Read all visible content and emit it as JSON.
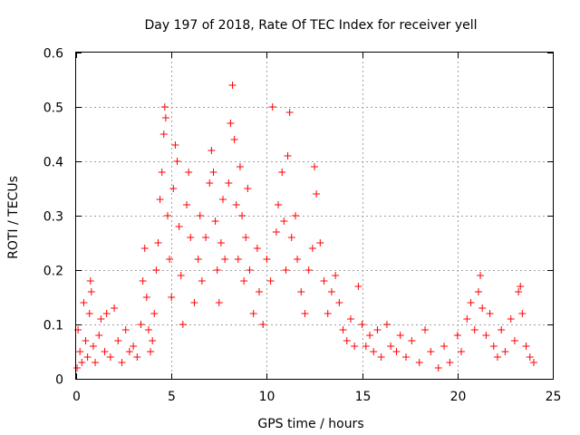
{
  "chart_data": {
    "type": "scatter",
    "title": "Day 197 of 2018, Rate Of TEC Index for receiver yell",
    "xlabel": "GPS time / hours",
    "ylabel": "ROTI / TECUs",
    "xlim": [
      0,
      25
    ],
    "ylim": [
      0,
      0.6
    ],
    "x_ticks": [
      0,
      5,
      10,
      15,
      20,
      25
    ],
    "x_tick_labels": [
      "0",
      "5",
      "10",
      "15",
      "20",
      "25"
    ],
    "y_ticks": [
      0,
      0.1,
      0.2,
      0.3,
      0.4,
      0.5,
      0.6
    ],
    "y_tick_labels": [
      "0",
      "0.1",
      "0.2",
      "0.3",
      "0.4",
      "0.5",
      "0.6"
    ],
    "grid": true,
    "marker": "plus",
    "series": [
      {
        "name": "ROTI",
        "color": "#ff0000",
        "points": [
          [
            0.05,
            0.02
          ],
          [
            0.1,
            0.09
          ],
          [
            0.2,
            0.05
          ],
          [
            0.3,
            0.03
          ],
          [
            0.4,
            0.14
          ],
          [
            0.5,
            0.07
          ],
          [
            0.6,
            0.04
          ],
          [
            0.7,
            0.12
          ],
          [
            0.75,
            0.18
          ],
          [
            0.8,
            0.16
          ],
          [
            0.9,
            0.06
          ],
          [
            1.0,
            0.03
          ],
          [
            1.2,
            0.08
          ],
          [
            1.3,
            0.11
          ],
          [
            1.5,
            0.05
          ],
          [
            1.6,
            0.12
          ],
          [
            1.8,
            0.04
          ],
          [
            2.0,
            0.13
          ],
          [
            2.2,
            0.07
          ],
          [
            2.4,
            0.03
          ],
          [
            2.6,
            0.09
          ],
          [
            2.8,
            0.05
          ],
          [
            3.0,
            0.06
          ],
          [
            3.2,
            0.04
          ],
          [
            3.4,
            0.1
          ],
          [
            3.5,
            0.18
          ],
          [
            3.6,
            0.24
          ],
          [
            3.7,
            0.15
          ],
          [
            3.8,
            0.09
          ],
          [
            3.9,
            0.05
          ],
          [
            4.0,
            0.07
          ],
          [
            4.1,
            0.12
          ],
          [
            4.2,
            0.2
          ],
          [
            4.3,
            0.25
          ],
          [
            4.4,
            0.33
          ],
          [
            4.5,
            0.38
          ],
          [
            4.6,
            0.45
          ],
          [
            4.65,
            0.5
          ],
          [
            4.7,
            0.48
          ],
          [
            4.8,
            0.3
          ],
          [
            4.9,
            0.22
          ],
          [
            5.0,
            0.15
          ],
          [
            5.1,
            0.35
          ],
          [
            5.2,
            0.43
          ],
          [
            5.3,
            0.4
          ],
          [
            5.4,
            0.28
          ],
          [
            5.5,
            0.19
          ],
          [
            5.6,
            0.1
          ],
          [
            5.8,
            0.32
          ],
          [
            5.9,
            0.38
          ],
          [
            6.0,
            0.26
          ],
          [
            6.2,
            0.14
          ],
          [
            6.4,
            0.22
          ],
          [
            6.5,
            0.3
          ],
          [
            6.6,
            0.18
          ],
          [
            6.8,
            0.26
          ],
          [
            7.0,
            0.36
          ],
          [
            7.1,
            0.42
          ],
          [
            7.2,
            0.38
          ],
          [
            7.3,
            0.29
          ],
          [
            7.4,
            0.2
          ],
          [
            7.5,
            0.14
          ],
          [
            7.6,
            0.25
          ],
          [
            7.7,
            0.33
          ],
          [
            7.8,
            0.22
          ],
          [
            8.0,
            0.36
          ],
          [
            8.1,
            0.47
          ],
          [
            8.2,
            0.54
          ],
          [
            8.3,
            0.44
          ],
          [
            8.4,
            0.32
          ],
          [
            8.5,
            0.22
          ],
          [
            8.6,
            0.39
          ],
          [
            8.7,
            0.3
          ],
          [
            8.8,
            0.18
          ],
          [
            8.9,
            0.26
          ],
          [
            9.0,
            0.35
          ],
          [
            9.1,
            0.2
          ],
          [
            9.3,
            0.12
          ],
          [
            9.5,
            0.24
          ],
          [
            9.6,
            0.16
          ],
          [
            9.8,
            0.1
          ],
          [
            10.0,
            0.22
          ],
          [
            10.2,
            0.18
          ],
          [
            10.3,
            0.5
          ],
          [
            10.5,
            0.27
          ],
          [
            10.6,
            0.32
          ],
          [
            10.8,
            0.38
          ],
          [
            10.9,
            0.29
          ],
          [
            11.0,
            0.2
          ],
          [
            11.1,
            0.41
          ],
          [
            11.2,
            0.49
          ],
          [
            11.3,
            0.26
          ],
          [
            11.5,
            0.3
          ],
          [
            11.6,
            0.22
          ],
          [
            11.8,
            0.16
          ],
          [
            12.0,
            0.12
          ],
          [
            12.2,
            0.2
          ],
          [
            12.4,
            0.24
          ],
          [
            12.5,
            0.39
          ],
          [
            12.6,
            0.34
          ],
          [
            12.8,
            0.25
          ],
          [
            13.0,
            0.18
          ],
          [
            13.2,
            0.12
          ],
          [
            13.4,
            0.16
          ],
          [
            13.6,
            0.19
          ],
          [
            13.8,
            0.14
          ],
          [
            14.0,
            0.09
          ],
          [
            14.2,
            0.07
          ],
          [
            14.4,
            0.11
          ],
          [
            14.6,
            0.06
          ],
          [
            14.8,
            0.17
          ],
          [
            15.0,
            0.1
          ],
          [
            15.2,
            0.06
          ],
          [
            15.4,
            0.08
          ],
          [
            15.6,
            0.05
          ],
          [
            15.8,
            0.09
          ],
          [
            16.0,
            0.04
          ],
          [
            16.3,
            0.1
          ],
          [
            16.5,
            0.06
          ],
          [
            16.8,
            0.05
          ],
          [
            17.0,
            0.08
          ],
          [
            17.3,
            0.04
          ],
          [
            17.6,
            0.07
          ],
          [
            18.0,
            0.03
          ],
          [
            18.3,
            0.09
          ],
          [
            18.6,
            0.05
          ],
          [
            19.0,
            0.02
          ],
          [
            19.3,
            0.06
          ],
          [
            19.6,
            0.03
          ],
          [
            20.0,
            0.08
          ],
          [
            20.2,
            0.05
          ],
          [
            20.5,
            0.11
          ],
          [
            20.7,
            0.14
          ],
          [
            20.9,
            0.09
          ],
          [
            21.1,
            0.16
          ],
          [
            21.2,
            0.19
          ],
          [
            21.3,
            0.13
          ],
          [
            21.5,
            0.08
          ],
          [
            21.7,
            0.12
          ],
          [
            21.9,
            0.06
          ],
          [
            22.1,
            0.04
          ],
          [
            22.3,
            0.09
          ],
          [
            22.5,
            0.05
          ],
          [
            22.8,
            0.11
          ],
          [
            23.0,
            0.07
          ],
          [
            23.2,
            0.16
          ],
          [
            23.3,
            0.17
          ],
          [
            23.4,
            0.12
          ],
          [
            23.6,
            0.06
          ],
          [
            23.8,
            0.04
          ],
          [
            24.0,
            0.03
          ]
        ]
      }
    ]
  }
}
